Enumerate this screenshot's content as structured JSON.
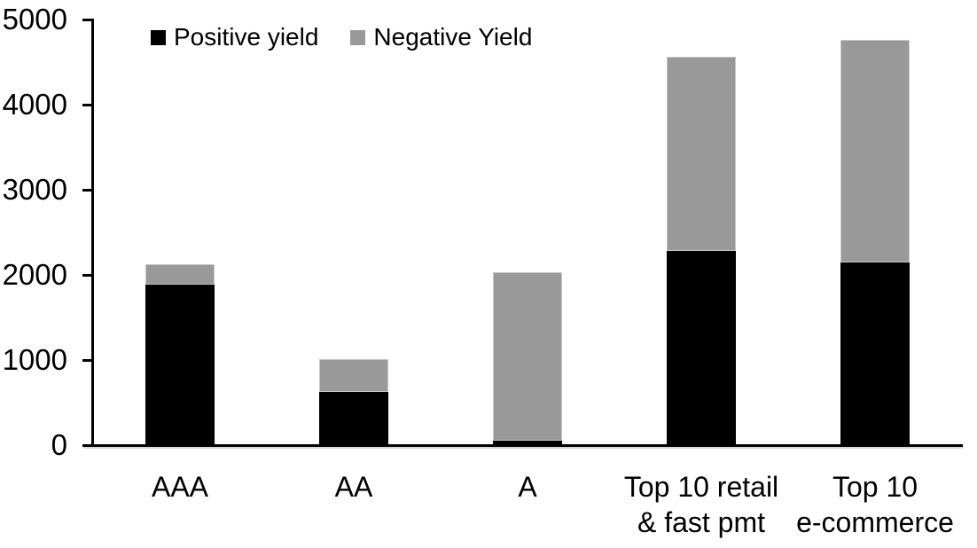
{
  "chart_data": {
    "type": "bar",
    "stacked": true,
    "title": "",
    "xlabel": "",
    "ylabel": "",
    "categories": [
      "AAA",
      "AA",
      "A",
      "Top 10 retail\n& fast pmt",
      "Top 10\ne-commerce"
    ],
    "series": [
      {
        "name": "Positive yield",
        "color": "#000000",
        "values": [
          1890,
          620,
          50,
          2280,
          2150
        ]
      },
      {
        "name": "Negative Yield",
        "color": "#999999",
        "values": [
          230,
          390,
          1980,
          2280,
          2610
        ]
      }
    ],
    "totals": [
      2120,
      1010,
      2030,
      4560,
      4760
    ],
    "ylim": [
      0,
      5000
    ],
    "yticks": [
      0,
      1000,
      2000,
      3000,
      4000,
      5000
    ],
    "grid": false,
    "legend_position": "top",
    "axis_color": "#000000",
    "background": "#ffffff"
  }
}
